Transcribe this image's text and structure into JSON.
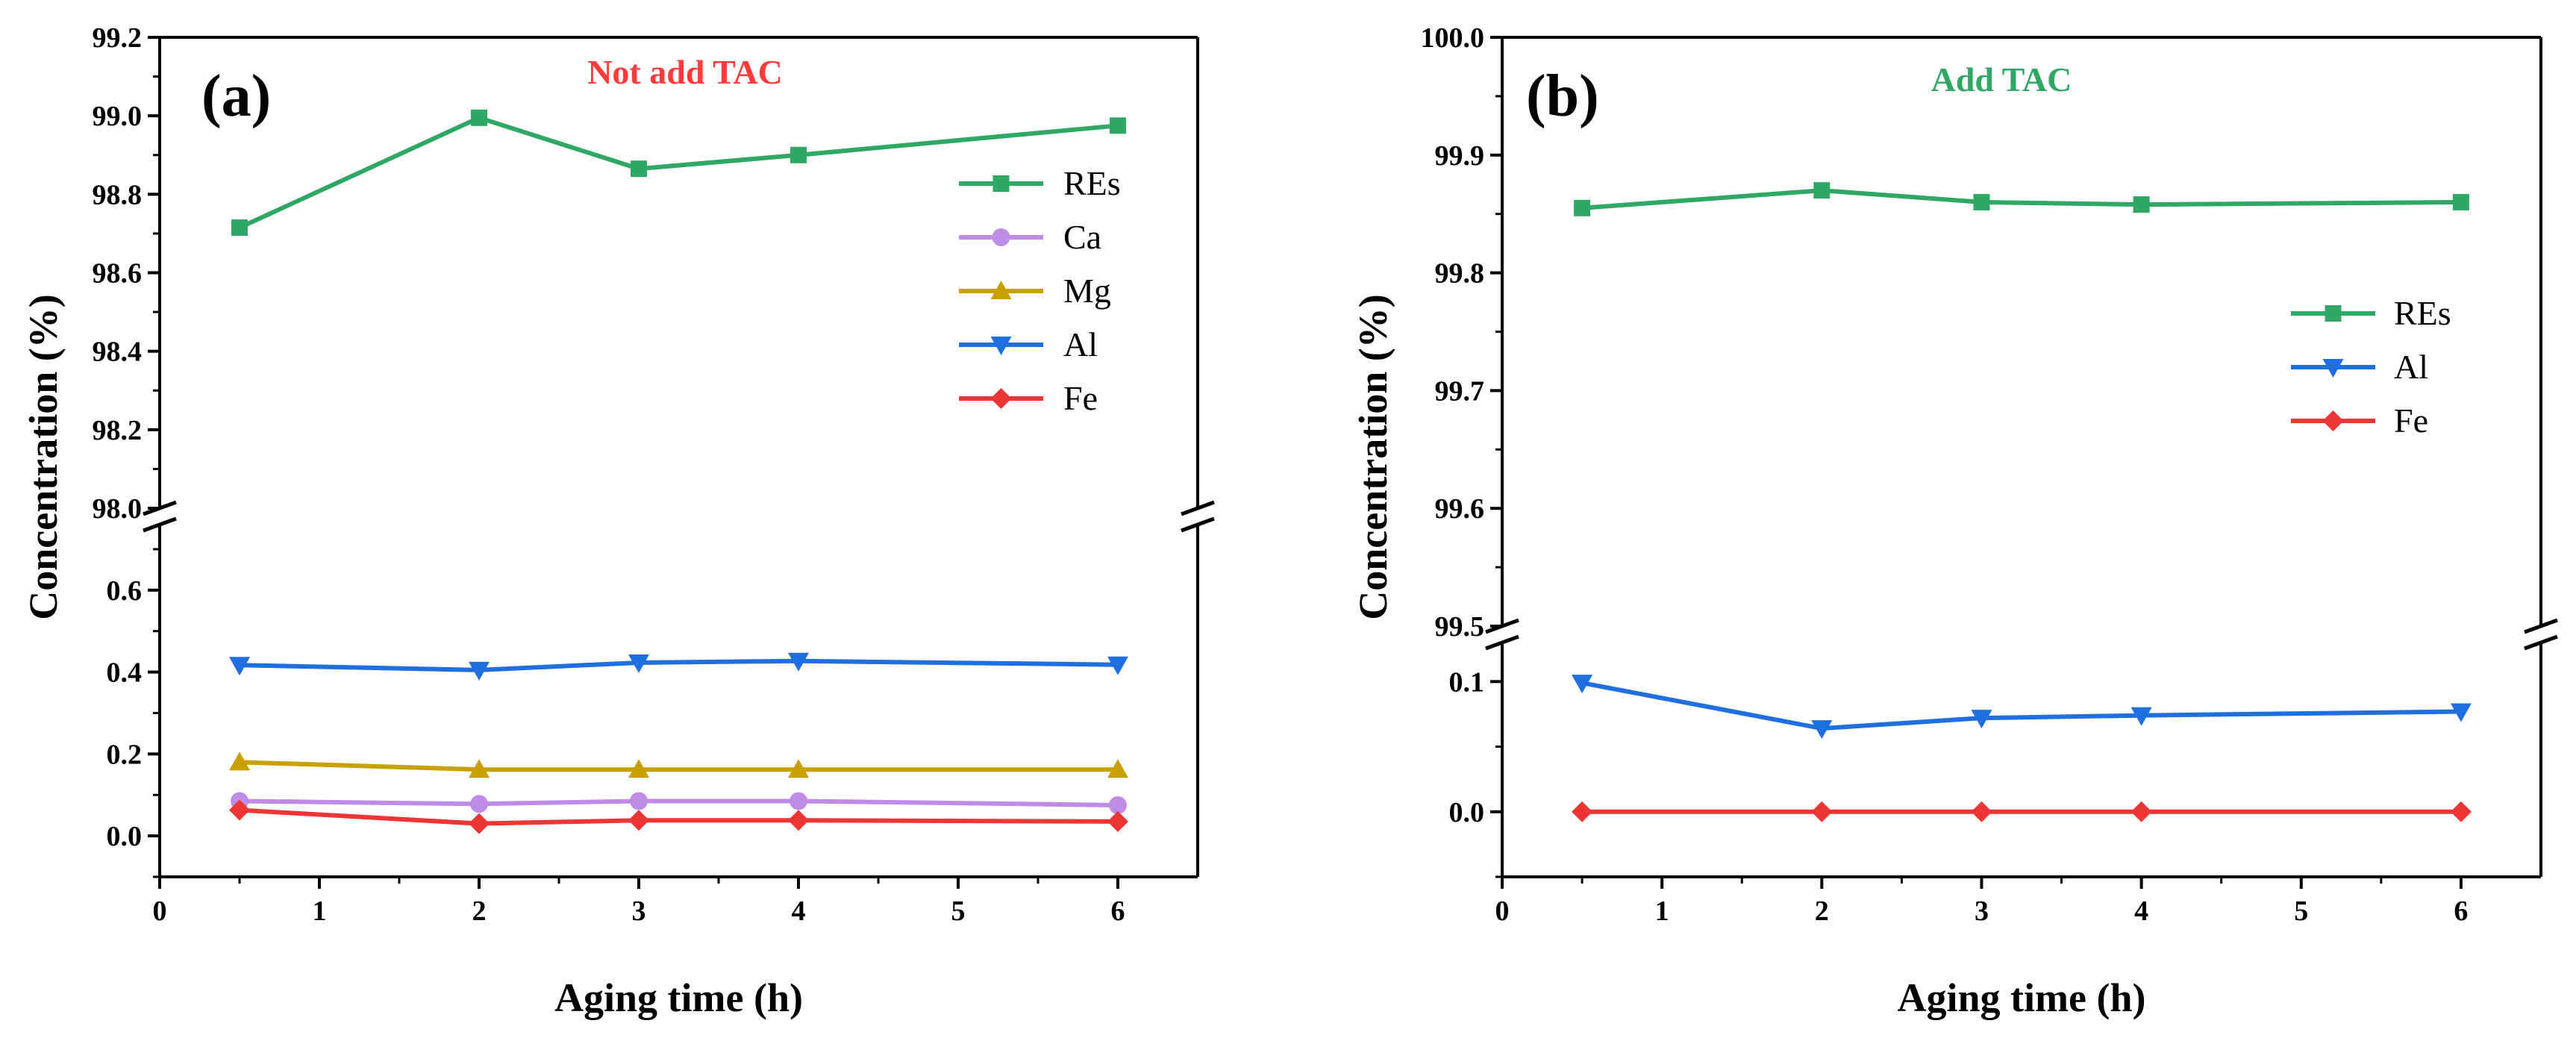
{
  "chart_data": [
    {
      "type": "line",
      "panel_label": "(a)",
      "annotation": "Not add TAC",
      "annotation_color": "#ff3b3b",
      "xlabel": "Aging time (h)",
      "ylabel": "Concentration (%)",
      "xlim": [
        0,
        6.5
      ],
      "x_ticks": [
        "0",
        "1",
        "2",
        "3",
        "4",
        "5",
        "6"
      ],
      "axis_break": true,
      "upper_ylim": [
        98.0,
        99.2
      ],
      "upper_y_ticks": [
        "98.0",
        "98.2",
        "98.4",
        "98.6",
        "98.8",
        "99.0",
        "99.2"
      ],
      "lower_ylim": [
        -0.1,
        0.76
      ],
      "lower_y_ticks": [
        "0.0",
        "0.2",
        "0.4",
        "0.6"
      ],
      "legend_position": "right",
      "x": [
        0.5,
        2,
        3,
        4,
        6
      ],
      "series": [
        {
          "name": "REs",
          "color": "#2fa866",
          "marker": "square",
          "values": [
            98.715,
            98.995,
            98.865,
            98.9,
            98.975
          ]
        },
        {
          "name": "Ca",
          "color": "#c08be6",
          "marker": "circle",
          "values": [
            0.085,
            0.078,
            0.085,
            0.085,
            0.075
          ]
        },
        {
          "name": "Mg",
          "color": "#c8a000",
          "marker": "triangle-up",
          "values": [
            0.18,
            0.162,
            0.162,
            0.162,
            0.162
          ]
        },
        {
          "name": "Al",
          "color": "#1f6fe0",
          "marker": "triangle-down",
          "values": [
            0.417,
            0.405,
            0.423,
            0.427,
            0.418
          ]
        },
        {
          "name": "Fe",
          "color": "#ee3535",
          "marker": "diamond",
          "values": [
            0.063,
            0.03,
            0.038,
            0.038,
            0.035
          ]
        }
      ]
    },
    {
      "type": "line",
      "panel_label": "(b)",
      "annotation": "Add TAC",
      "annotation_color": "#2fa866",
      "xlabel": "Aging time (h)",
      "ylabel": "Concentration (%)",
      "xlim": [
        0,
        6.5
      ],
      "x_ticks": [
        "0",
        "1",
        "2",
        "3",
        "4",
        "5",
        "6"
      ],
      "axis_break": true,
      "upper_ylim": [
        99.5,
        100.0
      ],
      "upper_y_ticks": [
        "99.5",
        "99.6",
        "99.7",
        "99.8",
        "99.9",
        "100.0"
      ],
      "lower_ylim": [
        -0.05,
        0.13
      ],
      "lower_y_ticks": [
        "0.0",
        "0.1"
      ],
      "legend_position": "right",
      "x": [
        0.5,
        2,
        3,
        4,
        6
      ],
      "series": [
        {
          "name": "REs",
          "color": "#2fa866",
          "marker": "square",
          "values": [
            99.855,
            99.87,
            99.86,
            99.858,
            99.86
          ]
        },
        {
          "name": "Al",
          "color": "#1f6fe0",
          "marker": "triangle-down",
          "values": [
            0.099,
            0.064,
            0.072,
            0.074,
            0.077
          ]
        },
        {
          "name": "Fe",
          "color": "#ee3535",
          "marker": "diamond",
          "values": [
            0.0,
            0.0,
            0.0,
            0.0,
            0.0
          ]
        }
      ]
    }
  ]
}
